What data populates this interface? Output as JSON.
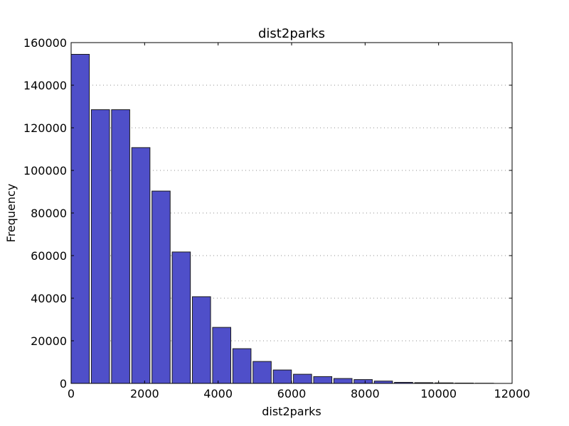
{
  "chart_data": {
    "type": "bar",
    "title": "dist2parks",
    "xlabel": "dist2parks",
    "ylabel": "Frequency",
    "xlim": [
      0,
      12000
    ],
    "ylim": [
      0,
      160000
    ],
    "xticks": [
      "0",
      "2000",
      "4000",
      "6000",
      "8000",
      "10000",
      "12000"
    ],
    "yticks": [
      "0",
      "20000",
      "40000",
      "60000",
      "80000",
      "100000",
      "120000",
      "140000",
      "160000"
    ],
    "grid": "horizontal dotted",
    "bin_width": 550,
    "bins": [
      {
        "x0": 0,
        "value": 154500
      },
      {
        "x0": 550,
        "value": 128500
      },
      {
        "x0": 1100,
        "value": 128500
      },
      {
        "x0": 1650,
        "value": 110700
      },
      {
        "x0": 2200,
        "value": 90300
      },
      {
        "x0": 2750,
        "value": 61700
      },
      {
        "x0": 3300,
        "value": 40700
      },
      {
        "x0": 3850,
        "value": 26300
      },
      {
        "x0": 4400,
        "value": 16300
      },
      {
        "x0": 4950,
        "value": 10300
      },
      {
        "x0": 5500,
        "value": 6300
      },
      {
        "x0": 6050,
        "value": 4300
      },
      {
        "x0": 6600,
        "value": 3200
      },
      {
        "x0": 7150,
        "value": 2300
      },
      {
        "x0": 7700,
        "value": 1800
      },
      {
        "x0": 8250,
        "value": 1100
      },
      {
        "x0": 8800,
        "value": 500
      },
      {
        "x0": 9350,
        "value": 350
      },
      {
        "x0": 9900,
        "value": 250
      },
      {
        "x0": 10450,
        "value": 150
      },
      {
        "x0": 11000,
        "value": 80
      }
    ],
    "bar_color": "#4f4fc9"
  }
}
